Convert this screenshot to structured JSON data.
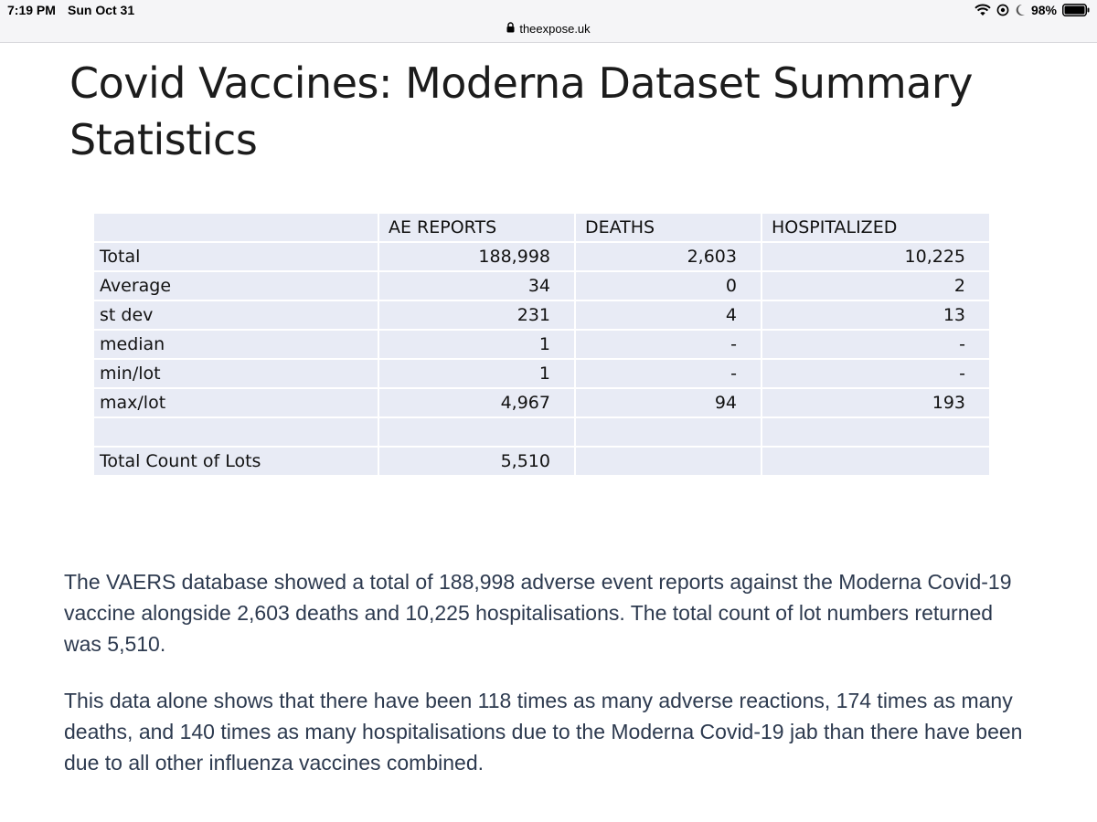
{
  "status_bar": {
    "time": "7:19 PM",
    "date": "Sun Oct 31",
    "battery": "98%"
  },
  "browser": {
    "url": "theexpose.uk"
  },
  "slide": {
    "title_line1": "Covid Vaccines: Moderna Dataset Summary",
    "title_line2": "Statistics",
    "table": {
      "headers": [
        "",
        "AE REPORTS",
        "DEATHS",
        "HOSPITALIZED"
      ],
      "rows": [
        [
          "Total",
          "188,998",
          "2,603",
          "10,225"
        ],
        [
          "Average",
          "34",
          "0",
          "2"
        ],
        [
          "st dev",
          "231",
          "4",
          "13"
        ],
        [
          "median",
          "1",
          "-",
          "-"
        ],
        [
          "min/lot",
          "1",
          "-",
          "-"
        ],
        [
          "max/lot",
          "4,967",
          "94",
          "193"
        ],
        [
          "",
          "",
          "",
          ""
        ],
        [
          "Total Count of Lots",
          "5,510",
          "",
          ""
        ]
      ]
    }
  },
  "article": {
    "paragraph1": "The VAERS database showed a total of 188,998 adverse event reports against the Moderna Covid-19 vaccine alongside 2,603 deaths and 10,225 hospitalisations. The total count of lot numbers returned was 5,510.",
    "paragraph2": "This data alone shows that there have been 118 times as many adverse reactions, 174 times as many deaths, and 140 times as many hospitalisations due to the Moderna Covid-19 jab than there have been due to all other influenza vaccines combined."
  }
}
